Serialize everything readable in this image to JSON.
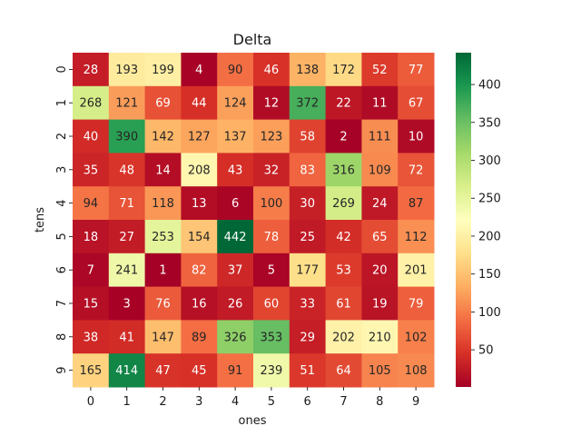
{
  "chart_data": {
    "type": "heatmap",
    "title": "Delta",
    "xlabel": "ones",
    "ylabel": "tens",
    "x_categories": [
      "0",
      "1",
      "2",
      "3",
      "4",
      "5",
      "6",
      "7",
      "8",
      "9"
    ],
    "y_categories": [
      "0",
      "1",
      "2",
      "3",
      "4",
      "5",
      "6",
      "7",
      "8",
      "9"
    ],
    "values": [
      [
        28,
        193,
        199,
        4,
        90,
        46,
        138,
        172,
        52,
        77
      ],
      [
        268,
        121,
        69,
        44,
        124,
        12,
        372,
        22,
        11,
        67
      ],
      [
        40,
        390,
        142,
        127,
        137,
        123,
        58,
        2,
        111,
        10
      ],
      [
        35,
        48,
        14,
        208,
        43,
        32,
        83,
        316,
        109,
        72
      ],
      [
        94,
        71,
        118,
        13,
        6,
        100,
        30,
        269,
        24,
        87
      ],
      [
        18,
        27,
        253,
        154,
        442,
        78,
        25,
        42,
        65,
        112
      ],
      [
        7,
        241,
        1,
        82,
        37,
        5,
        177,
        53,
        20,
        201
      ],
      [
        15,
        3,
        76,
        16,
        26,
        60,
        33,
        61,
        19,
        79
      ],
      [
        38,
        41,
        147,
        89,
        326,
        353,
        29,
        202,
        210,
        102
      ],
      [
        165,
        414,
        47,
        45,
        91,
        239,
        51,
        64,
        105,
        108
      ]
    ],
    "colormap": "RdYlGn",
    "vmin": 1,
    "vmax": 442,
    "colorbar_ticks": [
      50,
      100,
      150,
      200,
      250,
      300,
      350,
      400
    ]
  }
}
